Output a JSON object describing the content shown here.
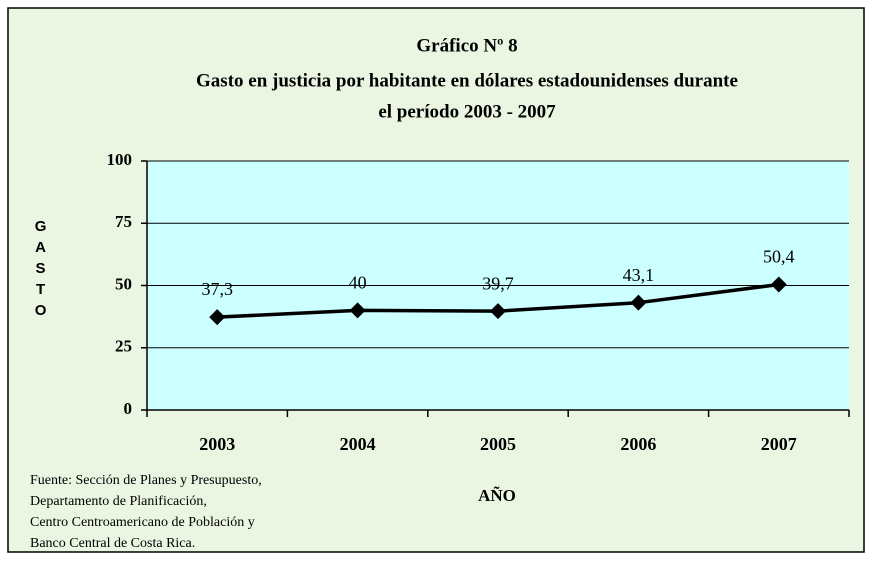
{
  "chart_data": {
    "type": "line",
    "title": [
      "Gráfico Nº 8",
      "Gasto en justicia por habitante  en dólares estadounidenses durante",
      "el período 2003 - 2007"
    ],
    "categories": [
      "2003",
      "2004",
      "2005",
      "2006",
      "2007"
    ],
    "values": [
      37.3,
      40,
      39.7,
      43.1,
      50.4
    ],
    "value_labels": [
      "37,3",
      "40",
      "39,7",
      "43,1",
      "50,4"
    ],
    "color": "#000000",
    "ylim": [
      0,
      100
    ],
    "yticks": [
      0,
      25,
      50,
      75,
      100
    ],
    "grid": true,
    "y_label": "GASTO",
    "x_label": "AÑO",
    "source": [
      "Fuente: Sección de Planes y Presupuesto,",
      "Departamento de Planificación,",
      "Centro Centroamericano de Población y",
      "Banco Central de Costa Rica."
    ]
  }
}
